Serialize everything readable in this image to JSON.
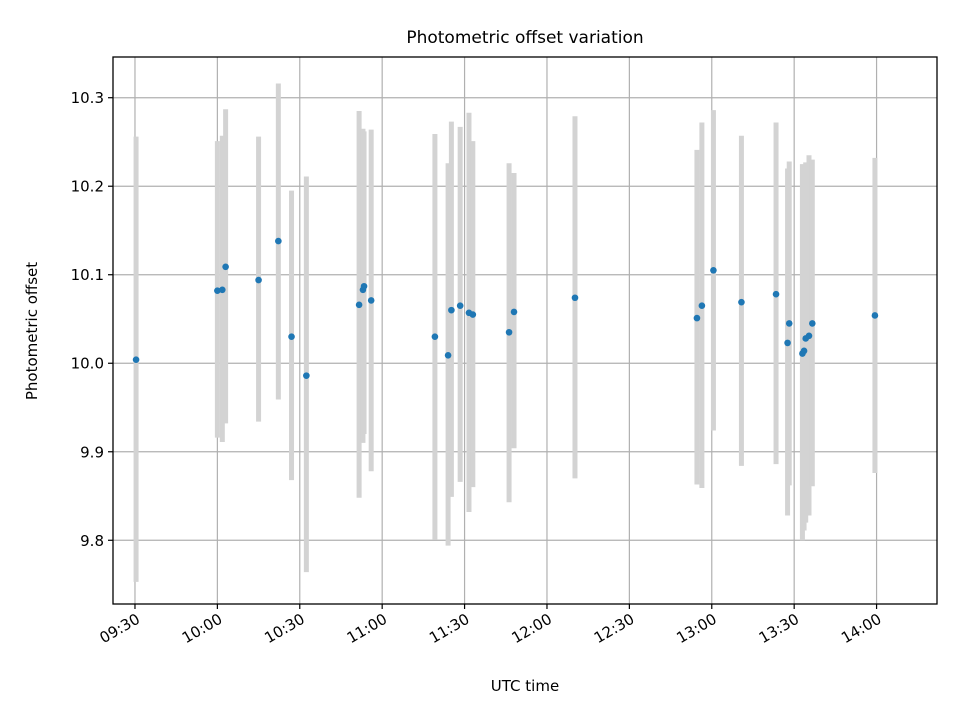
{
  "chart_data": {
    "type": "scatter",
    "title": "Photometric offset variation",
    "xlabel": "UTC time",
    "ylabel": "Photometric offset",
    "x_unit": "UTC time (HH:MM)",
    "xlim": [
      "09:22",
      "14:22"
    ],
    "ylim": [
      9.728,
      10.346
    ],
    "x_ticks": [
      "09:30",
      "10:00",
      "10:30",
      "11:00",
      "11:30",
      "12:00",
      "12:30",
      "13:00",
      "13:30",
      "14:00"
    ],
    "y_ticks": [
      "9.8",
      "9.9",
      "10.0",
      "10.1",
      "10.2",
      "10.3"
    ],
    "grid": true,
    "marker_color": "#1f77b4",
    "errorbar_color": "#d3d3d3",
    "series": [
      {
        "points": [
          {
            "x": "09:30:24",
            "y": 10.004,
            "ylo": 9.753,
            "yhi": 10.256
          },
          {
            "x": "10:00:00",
            "y": 10.082,
            "ylo": 9.916,
            "yhi": 10.251
          },
          {
            "x": "10:01:48",
            "y": 10.083,
            "ylo": 9.911,
            "yhi": 10.257
          },
          {
            "x": "10:03:00",
            "y": 10.109,
            "ylo": 9.932,
            "yhi": 10.287
          },
          {
            "x": "10:15:00",
            "y": 10.094,
            "ylo": 9.934,
            "yhi": 10.256
          },
          {
            "x": "10:22:12",
            "y": 10.138,
            "ylo": 9.959,
            "yhi": 10.316
          },
          {
            "x": "10:27:00",
            "y": 10.03,
            "ylo": 9.868,
            "yhi": 10.195
          },
          {
            "x": "10:32:24",
            "y": 9.986,
            "ylo": 9.764,
            "yhi": 10.211
          },
          {
            "x": "10:51:36",
            "y": 10.066,
            "ylo": 9.848,
            "yhi": 10.285
          },
          {
            "x": "10:53:00",
            "y": 10.083,
            "ylo": 9.91,
            "yhi": 10.265
          },
          {
            "x": "10:53:24",
            "y": 10.087,
            "ylo": 9.92,
            "yhi": 10.262
          },
          {
            "x": "10:56:00",
            "y": 10.071,
            "ylo": 9.878,
            "yhi": 10.264
          },
          {
            "x": "11:19:12",
            "y": 10.03,
            "ylo": 9.801,
            "yhi": 10.259
          },
          {
            "x": "11:24:00",
            "y": 10.009,
            "ylo": 9.794,
            "yhi": 10.226
          },
          {
            "x": "11:25:12",
            "y": 10.06,
            "ylo": 9.849,
            "yhi": 10.273
          },
          {
            "x": "11:28:24",
            "y": 10.065,
            "ylo": 9.866,
            "yhi": 10.267
          },
          {
            "x": "11:31:36",
            "y": 10.057,
            "ylo": 9.832,
            "yhi": 10.283
          },
          {
            "x": "11:33:00",
            "y": 10.055,
            "ylo": 9.86,
            "yhi": 10.251
          },
          {
            "x": "11:46:12",
            "y": 10.035,
            "ylo": 9.843,
            "yhi": 10.226
          },
          {
            "x": "11:48:00",
            "y": 10.058,
            "ylo": 9.904,
            "yhi": 10.215
          },
          {
            "x": "12:10:12",
            "y": 10.074,
            "ylo": 9.87,
            "yhi": 10.279
          },
          {
            "x": "12:54:36",
            "y": 10.051,
            "ylo": 9.863,
            "yhi": 10.241
          },
          {
            "x": "12:56:24",
            "y": 10.065,
            "ylo": 9.859,
            "yhi": 10.272
          },
          {
            "x": "13:00:36",
            "y": 10.105,
            "ylo": 9.924,
            "yhi": 10.286
          },
          {
            "x": "13:10:48",
            "y": 10.069,
            "ylo": 9.884,
            "yhi": 10.257
          },
          {
            "x": "13:23:24",
            "y": 10.078,
            "ylo": 9.886,
            "yhi": 10.272
          },
          {
            "x": "13:27:36",
            "y": 10.023,
            "ylo": 9.828,
            "yhi": 10.22
          },
          {
            "x": "13:28:12",
            "y": 10.045,
            "ylo": 9.862,
            "yhi": 10.228
          },
          {
            "x": "13:33:00",
            "y": 10.011,
            "ylo": 9.8,
            "yhi": 10.225
          },
          {
            "x": "13:33:36",
            "y": 10.014,
            "ylo": 9.811,
            "yhi": 10.219
          },
          {
            "x": "13:34:12",
            "y": 10.028,
            "ylo": 9.82,
            "yhi": 10.227
          },
          {
            "x": "13:35:24",
            "y": 10.031,
            "ylo": 9.828,
            "yhi": 10.235
          },
          {
            "x": "13:36:36",
            "y": 10.045,
            "ylo": 9.861,
            "yhi": 10.23
          },
          {
            "x": "13:59:24",
            "y": 10.054,
            "ylo": 9.876,
            "yhi": 10.232
          }
        ]
      }
    ]
  }
}
